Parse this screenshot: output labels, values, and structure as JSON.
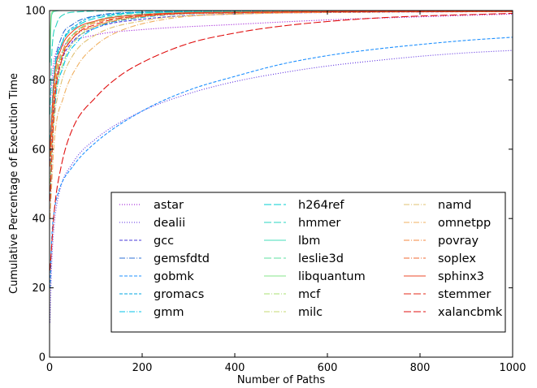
{
  "chart_data": {
    "type": "line",
    "title": "",
    "xlabel": "Number of Paths",
    "ylabel": "Cumulative Percentage of Execution Time",
    "xlim": [
      0,
      1000
    ],
    "ylim": [
      0,
      100
    ],
    "xticks": [
      0,
      200,
      400,
      600,
      800,
      1000
    ],
    "yticks": [
      0,
      20,
      40,
      60,
      80,
      100
    ],
    "x_tick_labels": [
      "0",
      "200",
      "400",
      "600",
      "800",
      "1000"
    ],
    "y_tick_labels": [
      "0",
      "20",
      "40",
      "60",
      "80",
      "100"
    ],
    "grid": false,
    "legend_position": "lower-right",
    "series": [
      {
        "name": "astar",
        "color": "#9400d3",
        "dash": "dotted",
        "points": [
          [
            1,
            72
          ],
          [
            10,
            86
          ],
          [
            30,
            90
          ],
          [
            100,
            93
          ],
          [
            200,
            94.5
          ],
          [
            400,
            96
          ],
          [
            600,
            97.3
          ],
          [
            800,
            98.2
          ],
          [
            1000,
            99
          ]
        ]
      },
      {
        "name": "dealii",
        "color": "#5a2be0",
        "dash": "dotted",
        "points": [
          [
            1,
            10
          ],
          [
            5,
            28
          ],
          [
            10,
            38
          ],
          [
            20,
            47
          ],
          [
            50,
            56
          ],
          [
            100,
            63
          ],
          [
            200,
            71
          ],
          [
            300,
            76
          ],
          [
            400,
            79.5
          ],
          [
            500,
            82
          ],
          [
            600,
            84
          ],
          [
            700,
            85.5
          ],
          [
            800,
            86.8
          ],
          [
            900,
            87.8
          ],
          [
            1000,
            88.5
          ]
        ]
      },
      {
        "name": "gcc",
        "color": "#4b3bd8",
        "dash": "dashed",
        "points": [
          [
            1,
            55
          ],
          [
            10,
            75
          ],
          [
            25,
            85
          ],
          [
            50,
            91
          ],
          [
            100,
            95
          ],
          [
            200,
            97.5
          ],
          [
            400,
            99
          ],
          [
            700,
            99.5
          ],
          [
            1000,
            99.7
          ]
        ]
      },
      {
        "name": "gemsfdtd",
        "color": "#2e6fd6",
        "dash": "dashdot",
        "points": [
          [
            1,
            60
          ],
          [
            10,
            82
          ],
          [
            25,
            92
          ],
          [
            50,
            96
          ],
          [
            100,
            98.5
          ],
          [
            200,
            99.5
          ],
          [
            500,
            99.8
          ],
          [
            1000,
            99.9
          ]
        ]
      },
      {
        "name": "gobmk",
        "color": "#1e90ff",
        "dash": "dashed",
        "points": [
          [
            1,
            20
          ],
          [
            5,
            35
          ],
          [
            10,
            42
          ],
          [
            20,
            48
          ],
          [
            50,
            55
          ],
          [
            100,
            62
          ],
          [
            200,
            71
          ],
          [
            300,
            77
          ],
          [
            400,
            81
          ],
          [
            500,
            84.5
          ],
          [
            600,
            87
          ],
          [
            700,
            88.8
          ],
          [
            800,
            90.2
          ],
          [
            900,
            91.4
          ],
          [
            1000,
            92.3
          ]
        ]
      },
      {
        "name": "gromacs",
        "color": "#00a5e0",
        "dash": "dashed",
        "points": [
          [
            1,
            58
          ],
          [
            10,
            80
          ],
          [
            25,
            90
          ],
          [
            60,
            96
          ],
          [
            120,
            98.7
          ],
          [
            250,
            99.6
          ],
          [
            600,
            99.9
          ],
          [
            1000,
            100
          ]
        ]
      },
      {
        "name": "gmm",
        "color": "#00c0e8",
        "dash": "dashdot",
        "points": [
          [
            1,
            45
          ],
          [
            10,
            70
          ],
          [
            30,
            84
          ],
          [
            60,
            91
          ],
          [
            100,
            95
          ],
          [
            200,
            98
          ],
          [
            400,
            99.3
          ],
          [
            1000,
            99.8
          ]
        ]
      },
      {
        "name": "h264ref",
        "color": "#00cfd0",
        "dash": "longdash",
        "points": [
          [
            1,
            62
          ],
          [
            10,
            82
          ],
          [
            25,
            90
          ],
          [
            60,
            95.5
          ],
          [
            120,
            98.3
          ],
          [
            250,
            99.5
          ],
          [
            600,
            99.8
          ],
          [
            1000,
            99.9
          ]
        ]
      },
      {
        "name": "hmmer",
        "color": "#2ad4c0",
        "dash": "longdash",
        "points": [
          [
            1,
            70
          ],
          [
            5,
            88
          ],
          [
            15,
            96
          ],
          [
            30,
            98.8
          ],
          [
            60,
            99.6
          ],
          [
            150,
            99.9
          ],
          [
            1000,
            100
          ]
        ]
      },
      {
        "name": "lbm",
        "color": "#45ddb8",
        "dash": "solid",
        "points": [
          [
            1,
            85
          ],
          [
            3,
            96
          ],
          [
            6,
            99.2
          ],
          [
            12,
            99.8
          ],
          [
            30,
            100
          ],
          [
            1000,
            100
          ]
        ]
      },
      {
        "name": "leslie3d",
        "color": "#5de0a0",
        "dash": "longdash",
        "points": [
          [
            1,
            60
          ],
          [
            10,
            78
          ],
          [
            25,
            87
          ],
          [
            50,
            93
          ],
          [
            100,
            97
          ],
          [
            200,
            99
          ],
          [
            400,
            99.6
          ],
          [
            1000,
            99.8
          ]
        ]
      },
      {
        "name": "libquantum",
        "color": "#86e58a",
        "dash": "solid",
        "points": [
          [
            1,
            90
          ],
          [
            3,
            98
          ],
          [
            6,
            99.6
          ],
          [
            15,
            100
          ],
          [
            1000,
            100
          ]
        ]
      },
      {
        "name": "mcf",
        "color": "#a8e070",
        "dash": "dashdot",
        "points": [
          [
            1,
            50
          ],
          [
            10,
            72
          ],
          [
            30,
            85
          ],
          [
            60,
            92
          ],
          [
            100,
            95.5
          ],
          [
            200,
            98.3
          ],
          [
            400,
            99.4
          ],
          [
            1000,
            99.7
          ]
        ]
      },
      {
        "name": "milc",
        "color": "#c6d870",
        "dash": "dashdot",
        "points": [
          [
            1,
            55
          ],
          [
            10,
            76
          ],
          [
            30,
            88
          ],
          [
            60,
            94
          ],
          [
            100,
            96.8
          ],
          [
            200,
            98.8
          ],
          [
            400,
            99.6
          ],
          [
            1000,
            99.9
          ]
        ]
      },
      {
        "name": "namd",
        "color": "#e0c070",
        "dash": "dashdot",
        "points": [
          [
            1,
            48
          ],
          [
            10,
            68
          ],
          [
            25,
            79
          ],
          [
            50,
            87
          ],
          [
            100,
            93
          ],
          [
            200,
            97
          ],
          [
            400,
            99
          ],
          [
            1000,
            99.8
          ]
        ]
      },
      {
        "name": "omnetpp",
        "color": "#f0b060",
        "dash": "dashdot",
        "points": [
          [
            1,
            40
          ],
          [
            10,
            62
          ],
          [
            30,
            75
          ],
          [
            60,
            84
          ],
          [
            100,
            90
          ],
          [
            150,
            94
          ],
          [
            250,
            97.5
          ],
          [
            400,
            99
          ],
          [
            1000,
            99.7
          ]
        ]
      },
      {
        "name": "povray",
        "color": "#f58a40",
        "dash": "dashdot",
        "points": [
          [
            1,
            58
          ],
          [
            10,
            78
          ],
          [
            30,
            89
          ],
          [
            60,
            94
          ],
          [
            100,
            96.5
          ],
          [
            200,
            98.5
          ],
          [
            400,
            99.4
          ],
          [
            1000,
            99.8
          ]
        ]
      },
      {
        "name": "soplex",
        "color": "#f26a30",
        "dash": "dashdot",
        "points": [
          [
            1,
            55
          ],
          [
            10,
            75
          ],
          [
            25,
            86
          ],
          [
            50,
            92
          ],
          [
            100,
            95.5
          ],
          [
            200,
            98.2
          ],
          [
            400,
            99.3
          ],
          [
            1000,
            99.7
          ]
        ]
      },
      {
        "name": "sphinx3",
        "color": "#ec4a28",
        "dash": "solid",
        "points": [
          [
            1,
            60
          ],
          [
            10,
            80
          ],
          [
            25,
            89
          ],
          [
            50,
            94
          ],
          [
            100,
            97
          ],
          [
            200,
            98.8
          ],
          [
            400,
            99.5
          ],
          [
            1000,
            99.8
          ]
        ]
      },
      {
        "name": "stemmer",
        "color": "#e52a1a",
        "dash": "longdash",
        "points": [
          [
            1,
            45
          ],
          [
            10,
            72
          ],
          [
            25,
            85
          ],
          [
            50,
            92
          ],
          [
            100,
            96
          ],
          [
            200,
            98.5
          ],
          [
            400,
            99.4
          ],
          [
            1000,
            99.8
          ]
        ]
      },
      {
        "name": "xalancbmk",
        "color": "#e01010",
        "dash": "longdash",
        "points": [
          [
            1,
            25
          ],
          [
            10,
            42
          ],
          [
            25,
            55
          ],
          [
            50,
            66
          ],
          [
            100,
            75
          ],
          [
            150,
            81
          ],
          [
            200,
            85
          ],
          [
            300,
            90.5
          ],
          [
            400,
            93.5
          ],
          [
            500,
            95.5
          ],
          [
            700,
            97.8
          ],
          [
            1000,
            99.2
          ]
        ]
      }
    ]
  }
}
